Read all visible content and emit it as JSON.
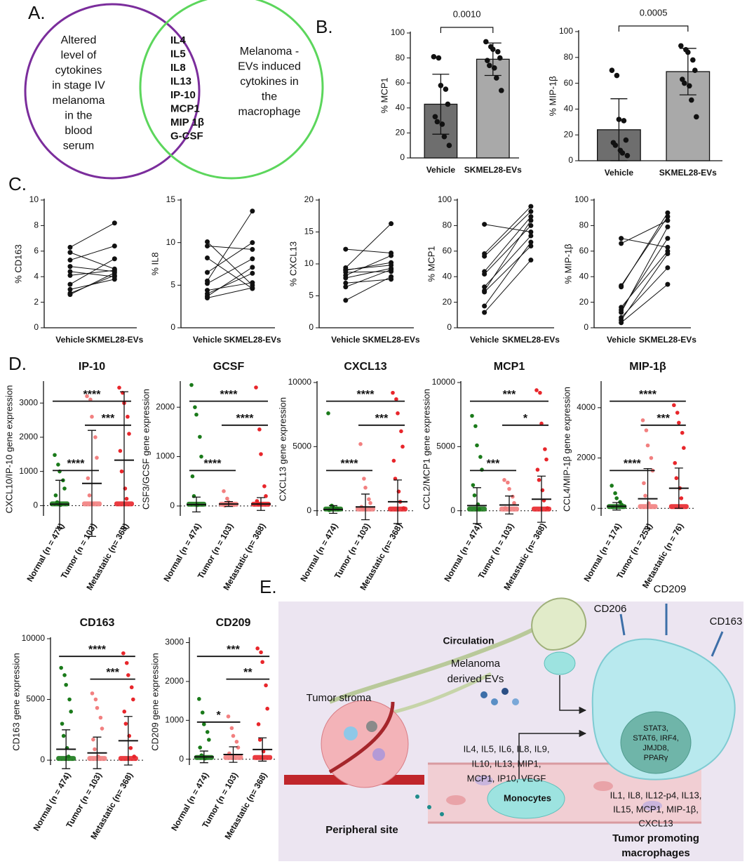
{
  "panel_labels": [
    "A.",
    "B.",
    "C.",
    "D.",
    "E."
  ],
  "venn": {
    "left_color": "#7b2d9c",
    "right_color": "#5cd65c",
    "left_text": [
      "Altered",
      "level of",
      "cytokines",
      "in stage IV",
      "melanoma",
      "in the",
      "blood",
      "serum"
    ],
    "right_text": [
      "Melanoma -",
      "EVs induced",
      "cytokines in",
      "the",
      "macrophage"
    ],
    "items": [
      {
        "text": "IL4",
        "color": "#1f4e79"
      },
      {
        "text": "IL5",
        "color": "#1f4e79"
      },
      {
        "text": "IL8",
        "color": "#1f4e79"
      },
      {
        "text": "IL13",
        "color": "#1f4e79"
      },
      {
        "text": "IP-10",
        "color": "#1f4e79"
      },
      {
        "text": "MCP1",
        "color": "#1f4e79"
      },
      {
        "text": "MIP 1β",
        "color": "#1f4e79"
      },
      {
        "text": "G-CSF",
        "color": "#c00000"
      }
    ]
  },
  "chart_data": [
    {
      "type": "bar",
      "ylabel": "% MCP1",
      "categories": [
        "Vehicle",
        "SKMEL28-EVs"
      ],
      "colors": [
        "#6e6e6e",
        "#a9a9a9"
      ],
      "values": [
        43,
        79
      ],
      "errors": [
        24,
        13
      ],
      "points": [
        [
          81,
          80,
          58,
          55,
          43,
          33,
          29,
          27,
          17,
          10
        ],
        [
          93,
          89,
          87,
          85,
          80,
          78,
          74,
          72,
          64,
          54
        ]
      ],
      "ylim": [
        0,
        100
      ],
      "yticks": [
        0,
        20,
        40,
        60,
        80,
        100
      ],
      "brackets": [
        {
          "groups": [
            0,
            1
          ],
          "label": "0.0010"
        }
      ]
    },
    {
      "type": "bar",
      "ylabel": "% MIP-1β",
      "categories": [
        "Vehicle",
        "SKMEL28-EVs"
      ],
      "colors": [
        "#6e6e6e",
        "#a9a9a9"
      ],
      "values": [
        24,
        69
      ],
      "errors": [
        24,
        18
      ],
      "points": [
        [
          70,
          66,
          32,
          31,
          16,
          14,
          12,
          8,
          6,
          4
        ],
        [
          89,
          86,
          84,
          78,
          70,
          63,
          60,
          58,
          47,
          34
        ]
      ],
      "ylim": [
        0,
        100
      ],
      "yticks": [
        0,
        20,
        40,
        60,
        80,
        100
      ],
      "brackets": [
        {
          "groups": [
            0,
            1
          ],
          "label": "0.0005"
        }
      ]
    },
    {
      "type": "paired",
      "ylabel": "% CD163",
      "categories": [
        "Vehicle",
        "SKMEL28-EVs"
      ],
      "values": [
        [
          6.3,
          5.9,
          5.3,
          4.8,
          4.4,
          4.1,
          3.4,
          3.0,
          2.7,
          2.6
        ],
        [
          8.2,
          4.6,
          6.4,
          4.4,
          4.0,
          4.5,
          5.4,
          3.8,
          4.1,
          4.3
        ]
      ],
      "ylim": [
        0,
        10
      ],
      "yticks": [
        0,
        2,
        4,
        6,
        8,
        10
      ]
    },
    {
      "type": "paired",
      "ylabel": "% IL8",
      "categories": [
        "Vehicle",
        "SKMEL28-EVs"
      ],
      "values": [
        [
          10.1,
          9.6,
          8.2,
          6.5,
          5.5,
          5.2,
          4.4,
          4.0,
          3.7,
          3.5
        ],
        [
          5.0,
          9.2,
          4.6,
          10.0,
          13.7,
          8.1,
          5.3,
          6.4,
          7.1,
          4.7
        ]
      ],
      "ylim": [
        0,
        15
      ],
      "yticks": [
        0,
        5,
        10,
        15
      ]
    },
    {
      "type": "paired",
      "ylabel": "% CXCL13",
      "categories": [
        "Vehicle",
        "SKMEL28-EVs"
      ],
      "values": [
        [
          12.3,
          9.4,
          9.1,
          8.7,
          8.2,
          7.8,
          7.0,
          6.4,
          4.3,
          9.0
        ],
        [
          11.7,
          16.3,
          9.8,
          8.8,
          11.3,
          9.3,
          7.6,
          9.1,
          8.0,
          10.2
        ]
      ],
      "ylim": [
        0,
        20
      ],
      "yticks": [
        0,
        5,
        10,
        15,
        20
      ]
    },
    {
      "type": "paired",
      "ylabel": "% MCP1",
      "categories": [
        "Vehicle",
        "SKMEL28-EVs"
      ],
      "values": [
        [
          81,
          58,
          56,
          44,
          42,
          32,
          29,
          28,
          17,
          12
        ],
        [
          75,
          95,
          91,
          87,
          80,
          72,
          84,
          64,
          67,
          53
        ]
      ],
      "ylim": [
        0,
        100
      ],
      "yticks": [
        0,
        20,
        40,
        60,
        80,
        100
      ]
    },
    {
      "type": "paired",
      "ylabel": "% MIP-1β",
      "categories": [
        "Vehicle",
        "SKMEL28-EVs"
      ],
      "values": [
        [
          70,
          66,
          33,
          32,
          16,
          14,
          12,
          8,
          6,
          4
        ],
        [
          63,
          84,
          87,
          90,
          60,
          70,
          79,
          47,
          58,
          34
        ]
      ],
      "ylim": [
        0,
        100
      ],
      "yticks": [
        0,
        20,
        40,
        60,
        80,
        100
      ]
    },
    {
      "type": "dot",
      "title": "IP-10",
      "ylabel": "CXCL10/IP-10 gene expression",
      "categories": [
        "Normal (n = 474)",
        "Tumor (n = 103)",
        "Metastatic (n= 368)"
      ],
      "colors": [
        "#1a7a1a",
        "#f28080",
        "#e8262b"
      ],
      "values": [
        40,
        650,
        1330
      ],
      "errors": [
        700,
        1550,
        2000
      ],
      "points": [
        [
          1480,
          1200,
          1000,
          740,
          500,
          300,
          100,
          20
        ],
        [
          3200,
          3100,
          2600,
          2000,
          1400,
          800,
          300,
          50
        ],
        [
          3450,
          3300,
          3000,
          2600,
          2100,
          1600,
          1000,
          500,
          200
        ]
      ],
      "ylim": [
        -300,
        3600
      ],
      "yticks": [
        0,
        1000,
        2000,
        3000
      ],
      "brackets": [
        {
          "groups": [
            0,
            1
          ],
          "label": "****"
        },
        {
          "groups": [
            1,
            2
          ],
          "label": "***"
        },
        {
          "groups": [
            0,
            2
          ],
          "label": "****"
        }
      ]
    },
    {
      "type": "dot",
      "title": "GCSF",
      "ylabel": "CSF3/GCSF gene expression",
      "categories": [
        "Normal (n = 474)",
        "Tumor (n = 103)",
        "Metastatic (n= 368)"
      ],
      "colors": [
        "#1a7a1a",
        "#f28080",
        "#e8262b"
      ],
      "values": [
        30,
        40,
        40
      ],
      "errors": [
        150,
        50,
        130
      ],
      "points": [
        [
          2450,
          2000,
          1850,
          1400,
          1000,
          600,
          200,
          20
        ],
        [
          300,
          150,
          80,
          40,
          20,
          10
        ],
        [
          2400,
          1550,
          1050,
          400,
          200,
          100,
          30
        ]
      ],
      "ylim": [
        -200,
        2500
      ],
      "yticks": [
        0,
        1000,
        2000
      ],
      "brackets": [
        {
          "groups": [
            0,
            1
          ],
          "label": "****"
        },
        {
          "groups": [
            1,
            2
          ],
          "label": "****"
        },
        {
          "groups": [
            0,
            2
          ],
          "label": "****"
        }
      ]
    },
    {
      "type": "dot",
      "title": "CXCL13",
      "ylabel": "CXCL13 gene expression",
      "categories": [
        "Normal (n = 474)",
        "Tumor (n = 103)",
        "Metastatic (n= 368)"
      ],
      "colors": [
        "#1a7a1a",
        "#f28080",
        "#e8262b"
      ],
      "values": [
        100,
        300,
        700
      ],
      "errors": [
        300,
        1000,
        1700
      ],
      "points": [
        [
          7600,
          400,
          300,
          200,
          100,
          50
        ],
        [
          5200,
          2500,
          1800,
          900,
          600,
          300,
          100
        ],
        [
          9200,
          8700,
          7600,
          6200,
          5000,
          3900,
          2500,
          1500,
          700,
          200
        ]
      ],
      "ylim": [
        -400,
        10000
      ],
      "yticks": [
        0,
        5000,
        10000
      ],
      "brackets": [
        {
          "groups": [
            0,
            1
          ],
          "label": "****"
        },
        {
          "groups": [
            1,
            2
          ],
          "label": "***"
        },
        {
          "groups": [
            0,
            2
          ],
          "label": "****"
        }
      ]
    },
    {
      "type": "dot",
      "title": "MCP1",
      "ylabel": "CCL2/MCP1 gene expression",
      "categories": [
        "Normal (n = 474)",
        "Tumor (n = 103)",
        "Metastatic (n= 368)"
      ],
      "colors": [
        "#1a7a1a",
        "#f28080",
        "#e8262b"
      ],
      "values": [
        400,
        450,
        900
      ],
      "errors": [
        1400,
        700,
        1800
      ],
      "points": [
        [
          7400,
          6600,
          5100,
          4200,
          3200,
          2000,
          1200,
          500,
          100
        ],
        [
          2400,
          2200,
          1700,
          1100,
          600,
          200
        ],
        [
          9400,
          9200,
          6800,
          4800,
          4000,
          3200,
          2400,
          1600,
          800,
          200
        ]
      ],
      "ylim": [
        -400,
        10000
      ],
      "yticks": [
        0,
        5000,
        10000
      ],
      "brackets": [
        {
          "groups": [
            0,
            1
          ],
          "label": "***"
        },
        {
          "groups": [
            1,
            2
          ],
          "label": "*"
        },
        {
          "groups": [
            0,
            2
          ],
          "label": "***"
        }
      ]
    },
    {
      "type": "dot",
      "title": "MIP-1β",
      "ylabel": "CCL4/MIP-1β gene expression",
      "categories": [
        "Normal (n = 174)",
        "Tumor (n = 253)",
        "Metastatic (n = 76)"
      ],
      "colors": [
        "#1a7a1a",
        "#f28080",
        "#e8262b"
      ],
      "values": [
        80,
        380,
        800
      ],
      "errors": [
        150,
        1200,
        800
      ],
      "points": [
        [
          900,
          600,
          400,
          250,
          150,
          50
        ],
        [
          3500,
          3100,
          2500,
          2000,
          1500,
          1000,
          500,
          200
        ],
        [
          4100,
          3800,
          3400,
          3000,
          2400,
          1800,
          1200,
          800,
          400
        ]
      ],
      "ylim": [
        -300,
        5000
      ],
      "yticks": [
        0,
        2000,
        4000
      ],
      "brackets": [
        {
          "groups": [
            0,
            1
          ],
          "label": "****"
        },
        {
          "groups": [
            1,
            2
          ],
          "label": "***"
        },
        {
          "groups": [
            0,
            2
          ],
          "label": "****"
        }
      ]
    },
    {
      "type": "dot",
      "title": "CD163",
      "ylabel": "CD163 gene expression",
      "categories": [
        "Normal (n = 474)",
        "Tumor (n = 103)",
        "Metastatic (n= 368)"
      ],
      "colors": [
        "#1a7a1a",
        "#f28080",
        "#e8262b"
      ],
      "values": [
        900,
        600,
        1600
      ],
      "errors": [
        1600,
        1300,
        2000
      ],
      "points": [
        [
          7600,
          7000,
          6200,
          5000,
          4000,
          3000,
          2000,
          1000,
          300
        ],
        [
          5500,
          5000,
          4300,
          3500,
          2600,
          1700,
          900,
          300
        ],
        [
          8800,
          8000,
          7000,
          6000,
          5000,
          4000,
          3000,
          2000,
          1000,
          300
        ]
      ],
      "ylim": [
        -400,
        10000
      ],
      "yticks": [
        0,
        5000,
        10000
      ],
      "brackets": [
        {
          "groups": [
            1,
            2
          ],
          "label": "***"
        },
        {
          "groups": [
            0,
            2
          ],
          "label": "****"
        }
      ]
    },
    {
      "type": "dot",
      "title": "CD209",
      "ylabel": "CD209 gene expression",
      "categories": [
        "Normal (n = 474)",
        "Tumor (n = 103)",
        "Metastatic (n= 368)"
      ],
      "colors": [
        "#1a7a1a",
        "#f28080",
        "#e8262b"
      ],
      "values": [
        60,
        120,
        250
      ],
      "errors": [
        150,
        200,
        300
      ],
      "points": [
        [
          1550,
          1200,
          900,
          700,
          500,
          300,
          100,
          20
        ],
        [
          1100,
          800,
          600,
          450,
          300,
          150
        ],
        [
          2850,
          2750,
          2500,
          1900,
          1300,
          900,
          500,
          200
        ]
      ],
      "ylim": [
        -150,
        3100
      ],
      "yticks": [
        0,
        1000,
        2000,
        3000
      ],
      "brackets": [
        {
          "groups": [
            0,
            1
          ],
          "label": "*"
        },
        {
          "groups": [
            1,
            2
          ],
          "label": "**"
        },
        {
          "groups": [
            0,
            2
          ],
          "label": "***"
        }
      ]
    }
  ],
  "diagram": {
    "circulation": "Circulation",
    "evs": [
      "Melanoma",
      "derived EVs"
    ],
    "stroma": "Tumor stroma",
    "secreted": [
      "IL4, IL5, IL6, IL8, IL9,",
      "IL10, IL13, MIP1,",
      "MCP1,  IP10, VEGF"
    ],
    "peripheral": "Peripheral site",
    "monocytes": "Monocytes",
    "receptors": [
      "CD206",
      "CD209",
      "CD163"
    ],
    "nucleus": [
      "STAT3,",
      "STAT6, IRF4,",
      "JMJD8,",
      "PPARγ"
    ],
    "released": [
      "IL1, IL8, IL12-p4, IL13,",
      "IL15,  MCP1, MIP-1β,",
      "CXCL13"
    ],
    "macrophage": [
      "Tumor promoting",
      "macrophages"
    ]
  }
}
